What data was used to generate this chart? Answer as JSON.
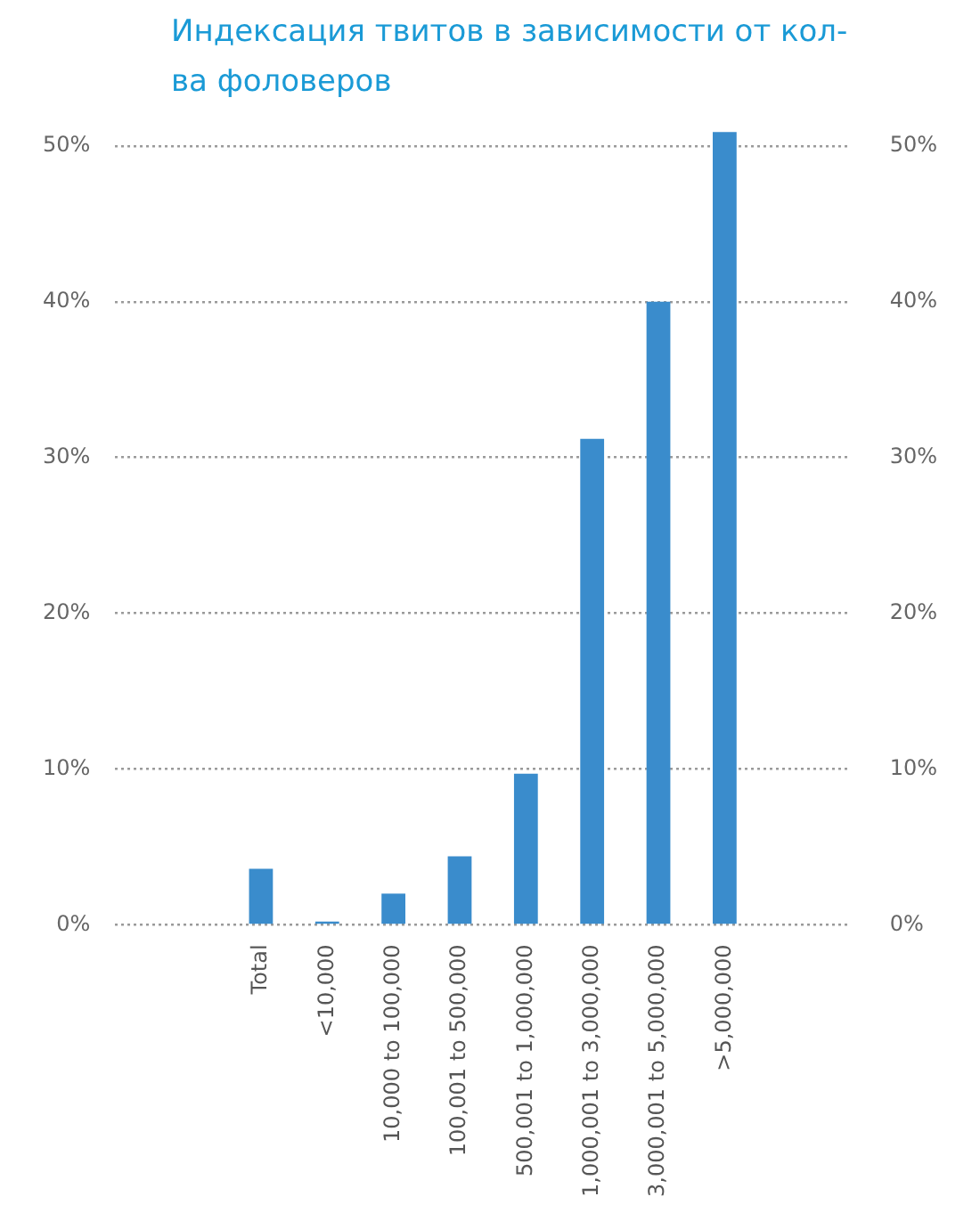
{
  "chart_data": {
    "type": "bar",
    "title": "Индексация твитов в зависимости от кол-ва фоловеров",
    "categories": [
      "Total",
      "<10,000",
      "10,000 to 100,000",
      "100,001 to 500,000",
      "500,001 to 1,000,000",
      "1,000,001 to 3,000,000",
      "3,000,001 to 5,000,000",
      ">5,000,000"
    ],
    "values": [
      3.6,
      0.2,
      2.0,
      4.4,
      9.7,
      31.2,
      40.0,
      50.9
    ],
    "color": "#3a8ccc",
    "ylim": [
      0,
      51
    ],
    "yticks": [
      {
        "value": 0,
        "label": "0%"
      },
      {
        "value": 10,
        "label": "10%"
      },
      {
        "value": 20,
        "label": "20%"
      },
      {
        "value": 30,
        "label": "30%"
      },
      {
        "value": 40,
        "label": "40%"
      },
      {
        "value": 50,
        "label": "50%"
      }
    ],
    "y2lim": [
      0,
      51
    ],
    "y2ticks": [
      {
        "value": 0,
        "label": "0%"
      },
      {
        "value": 10,
        "label": "10%"
      },
      {
        "value": 20,
        "label": "20%"
      },
      {
        "value": 30,
        "label": "30%"
      },
      {
        "value": 40,
        "label": "40%"
      },
      {
        "value": 50,
        "label": "50%"
      }
    ],
    "grid": "y"
  }
}
